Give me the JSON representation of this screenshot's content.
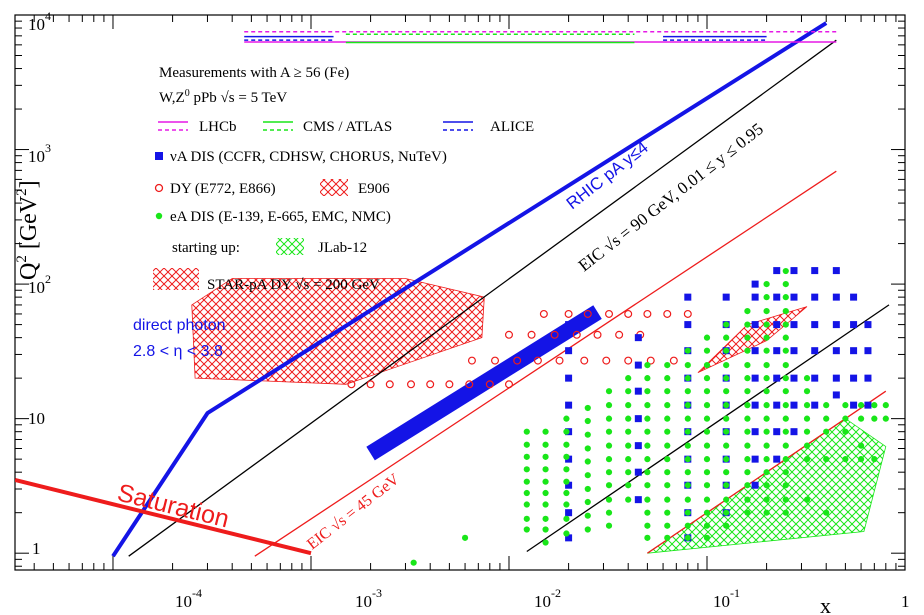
{
  "chart_data": {
    "type": "scatter",
    "title": "",
    "xlabel": "x",
    "ylabel": "Q",
    "ylabel_sup": "2",
    "ylabel_unit": " [GeV",
    "ylabel_unit_sup": "2",
    "ylabel_unit_close": "]",
    "xscale": "log",
    "yscale": "log",
    "xlim": [
      3.2e-05,
      1
    ],
    "ylim": [
      0.75,
      10000
    ],
    "grid": false,
    "x_ticks": [
      {
        "value": 0.0001,
        "base": "10",
        "exp": "-4"
      },
      {
        "value": 0.001,
        "base": "10",
        "exp": "-3"
      },
      {
        "value": 0.01,
        "base": "10",
        "exp": "-2"
      },
      {
        "value": 0.1,
        "base": "10",
        "exp": "-1"
      },
      {
        "value": 1,
        "base": "1",
        "exp": ""
      }
    ],
    "y_ticks": [
      {
        "value": 1,
        "base": "1",
        "exp": ""
      },
      {
        "value": 10,
        "base": "10",
        "exp": ""
      },
      {
        "value": 100,
        "base": "10",
        "exp": "2"
      },
      {
        "value": 1000,
        "base": "10",
        "exp": "3"
      },
      {
        "value": 10000,
        "base": "10",
        "exp": "4"
      }
    ],
    "legend": {
      "header1": "Measurements with A ≥ 56 (Fe)",
      "header2": "W,Z",
      "header2_sup": "0",
      "header2_rest": " pPb √s = 5 TeV",
      "lhcb": "LHCb",
      "cms": "CMS / ATLAS",
      "alice": "ALICE",
      "nuA": "νA DIS (CCFR, CDHSW, CHORUS, NuTeV)",
      "dy": "DY (E772, E866)",
      "e906": "E906",
      "eA": "eA DIS (E-139, E-665, EMC, NMC)",
      "starting": "starting up:",
      "jlab": "JLab-12",
      "star": "STAR-pA DY  √s = 200 GeV"
    },
    "annotations": {
      "rhic": "RHIC pA y≤4",
      "eic90": "EIC √s = 90 GeV, 0.01 ≤ y ≤ 0.95",
      "eic45": "EIC √s = 45 GeV",
      "saturation": "Saturation",
      "photon1": "direct photon",
      "photon2": "2.8 < η < 3.8"
    },
    "series": [
      {
        "name": "RHIC pA y≤4",
        "kind": "line",
        "points": [
          [
            0.0001,
            0.95
          ],
          [
            0.0003,
            11
          ],
          [
            0.4,
            8700
          ]
        ]
      },
      {
        "name": "EIC √s = 90 GeV, 0.01 ≤ y ≤ 0.95",
        "kind": "line",
        "points": [
          [
            0.00012,
            0.95
          ],
          [
            0.45,
            6500
          ]
        ]
      },
      {
        "name": "EIC √s = 90 GeV, 0.01 ≤ y ≤ 0.95",
        "kind": "line",
        "points": [
          [
            0.0123,
            1.03
          ],
          [
            0.83,
            70
          ]
        ]
      },
      {
        "name": "EIC √s = 45 GeV",
        "kind": "line",
        "points": [
          [
            0.00052,
            0.95
          ],
          [
            0.45,
            690
          ]
        ]
      },
      {
        "name": "EIC √s = 45 GeV",
        "kind": "line",
        "points": [
          [
            0.05,
            1.0
          ],
          [
            0.8,
            16
          ]
        ]
      },
      {
        "name": "Saturation",
        "kind": "line",
        "points": [
          [
            3.2e-05,
            3.5
          ],
          [
            0.001,
            1.0
          ]
        ]
      },
      {
        "name": "νA DIS (CCFR, CDHSW, CHORUS, NuTeV)",
        "kind": "thick_band",
        "points": [
          [
            0.002,
            5.5
          ],
          [
            0.028,
            62
          ]
        ]
      },
      {
        "name": "STAR-pA DY  √s = 200 GeV",
        "kind": "hatch_region",
        "points": [
          [
            0.00026,
            20
          ],
          [
            0.00025,
            70
          ],
          [
            0.0004,
            110
          ],
          [
            0.003,
            110
          ],
          [
            0.0075,
            80
          ],
          [
            0.0073,
            40
          ],
          [
            0.0015,
            18
          ],
          [
            0.00026,
            20
          ]
        ]
      },
      {
        "name": "E906",
        "kind": "hatch_region",
        "points": [
          [
            0.09,
            22
          ],
          [
            0.2,
            38
          ],
          [
            0.27,
            55
          ],
          [
            0.32,
            68
          ],
          [
            0.16,
            50
          ],
          [
            0.09,
            22
          ]
        ]
      },
      {
        "name": "JLab-12",
        "kind": "hatch_region",
        "points": [
          [
            0.05,
            1.0
          ],
          [
            0.62,
            1.45
          ],
          [
            0.8,
            6.2
          ],
          [
            0.5,
            10
          ],
          [
            0.05,
            1.0
          ]
        ]
      },
      {
        "name": "DY (E772, E866)",
        "kind": "points",
        "rows": [
          {
            "q2": 60,
            "x": [
              0.015,
              0.02,
              0.025,
              0.032,
              0.04,
              0.05,
              0.063,
              0.08
            ]
          },
          {
            "q2": 42,
            "x": [
              0.01,
              0.013,
              0.017,
              0.022,
              0.028,
              0.036,
              0.046
            ]
          },
          {
            "q2": 27,
            "x": [
              0.0065,
              0.0085,
              0.011,
              0.014,
              0.018,
              0.024,
              0.031,
              0.04,
              0.052,
              0.068
            ]
          },
          {
            "q2": 18,
            "x": [
              0.0016,
              0.002,
              0.0025,
              0.0032,
              0.004,
              0.005,
              0.0063,
              0.008,
              0.01
            ]
          }
        ]
      },
      {
        "name": "W,Z0 pPb √s = 5 TeV (LHCb)",
        "kind": "segments",
        "segments": [
          [
            0.00046,
            0.45,
            7500
          ],
          [
            0.00046,
            0.45,
            6300
          ]
        ]
      },
      {
        "name": "W,Z0 pPb √s = 5 TeV (CMS / ATLAS)",
        "kind": "segments",
        "segments": [
          [
            0.0015,
            0.043,
            7200
          ],
          [
            0.0015,
            0.043,
            6250
          ]
        ]
      },
      {
        "name": "W,Z0 pPb √s = 5 TeV (ALICE)",
        "kind": "segments",
        "segments": [
          [
            0.00046,
            0.0013,
            6900
          ],
          [
            0.00046,
            0.0013,
            6500
          ],
          [
            0.06,
            0.2,
            6900
          ],
          [
            0.06,
            0.2,
            6500
          ]
        ]
      },
      {
        "name": "νA DIS (CCFR, CDHSW, CHORUS, NuTeV)",
        "kind": "points",
        "columns": [
          {
            "x": 0.02,
            "q2": [
              1.3,
              2.0,
              3.2,
              5.0,
              8.0,
              12.6,
              20,
              32,
              50
            ]
          },
          {
            "x": 0.045,
            "q2": [
              2.5,
              4.0,
              6.3,
              10,
              16,
              25,
              40
            ]
          },
          {
            "x": 0.08,
            "q2": [
              1.3,
              2.0,
              3.2,
              5.0,
              8.0,
              12.6,
              20,
              32,
              50,
              80
            ]
          },
          {
            "x": 0.125,
            "q2": [
              2.0,
              3.2,
              5.0,
              8.0,
              12.6,
              20,
              32,
              50,
              80
            ]
          },
          {
            "x": 0.175,
            "q2": [
              3.2,
              5.0,
              8.0,
              12.6,
              20,
              32,
              50,
              80,
              100
            ]
          },
          {
            "x": 0.225,
            "q2": [
              5.0,
              8.0,
              12.6,
              20,
              32,
              50,
              80,
              126
            ]
          },
          {
            "x": 0.275,
            "q2": [
              8.0,
              12.6,
              20,
              32,
              50,
              80,
              126
            ]
          },
          {
            "x": 0.35,
            "q2": [
              12.6,
              20,
              32,
              50,
              80,
              126
            ]
          },
          {
            "x": 0.45,
            "q2": [
              15,
              20,
              32,
              50,
              80,
              126
            ]
          },
          {
            "x": 0.55,
            "q2": [
              12.6,
              20,
              32,
              50,
              80
            ]
          },
          {
            "x": 0.65,
            "q2": [
              12.6,
              20,
              32,
              50
            ]
          }
        ]
      },
      {
        "name": "eA DIS (E-139, E-665, EMC, NMC)",
        "kind": "points",
        "columns": [
          {
            "x": 0.0033,
            "q2": [
              0.85
            ]
          },
          {
            "x": 0.006,
            "q2": [
              1.3
            ]
          },
          {
            "x": 0.0123,
            "q2": [
              1.5,
              1.8,
              2.3,
              2.8,
              3.4,
              4.2,
              5.2,
              6.4,
              8.0
            ]
          },
          {
            "x": 0.0153,
            "q2": [
              1.2,
              1.5,
              1.8,
              2.3,
              2.8,
              3.4,
              4.2,
              5.2,
              6.4,
              8.0
            ]
          },
          {
            "x": 0.0195,
            "q2": [
              1.4,
              1.8,
              2.3,
              2.8,
              3.4,
              4.2,
              5.2,
              6.4,
              8.0,
              10
            ]
          },
          {
            "x": 0.025,
            "q2": [
              1.5,
              1.9,
              2.4,
              3.0,
              3.8,
              4.8,
              6.0,
              7.6,
              9.6,
              12
            ]
          },
          {
            "x": 0.032,
            "q2": [
              1.6,
              2.0,
              2.5,
              3.2,
              4.0,
              5.0,
              6.3,
              8.0,
              10,
              12.6,
              16
            ]
          },
          {
            "x": 0.04,
            "q2": [
              2.5,
              3.2,
              4.0,
              5.0,
              6.3,
              8.0,
              10,
              12.6,
              16,
              20
            ]
          },
          {
            "x": 0.05,
            "q2": [
              1.3,
              1.6,
              2.0,
              2.5,
              3.2,
              4.0,
              5.0,
              6.3,
              8.0,
              10,
              12.6,
              16,
              20,
              25
            ]
          },
          {
            "x": 0.063,
            "q2": [
              1.3,
              1.6,
              2.0,
              2.5,
              3.2,
              4.0,
              5.0,
              6.3,
              8.0,
              10,
              12.6,
              16,
              20,
              25
            ]
          },
          {
            "x": 0.08,
            "q2": [
              1.3,
              1.6,
              2.0,
              2.5,
              3.2,
              4.0,
              5.0,
              6.3,
              8.0,
              10,
              12.6,
              16,
              20,
              25,
              32
            ]
          },
          {
            "x": 0.1,
            "q2": [
              1.3,
              1.6,
              2.0,
              2.5,
              3.2,
              4.0,
              5.0,
              6.3,
              8.0,
              10,
              12.6,
              16,
              20,
              25,
              32,
              40
            ]
          },
          {
            "x": 0.125,
            "q2": [
              1.6,
              2.0,
              2.5,
              3.2,
              4.0,
              5.0,
              6.3,
              8.0,
              10,
              12.6,
              16,
              20,
              25,
              32,
              40,
              50
            ]
          },
          {
            "x": 0.16,
            "q2": [
              2.0,
              2.5,
              3.2,
              4.0,
              5.0,
              6.3,
              8.0,
              10,
              12.6,
              16,
              20,
              25,
              32,
              40,
              50,
              63
            ]
          },
          {
            "x": 0.2,
            "q2": [
              2.0,
              2.5,
              3.2,
              4.0,
              5.0,
              6.3,
              8.0,
              10,
              12.6,
              16,
              20,
              25,
              32,
              40,
              50,
              63,
              80,
              100
            ]
          },
          {
            "x": 0.25,
            "q2": [
              2.0,
              2.5,
              3.2,
              4.0,
              5.0,
              6.3,
              8.0,
              10,
              12.6,
              16,
              20,
              25,
              32,
              40,
              50,
              63,
              80,
              100,
              125
            ]
          },
          {
            "x": 0.32,
            "q2": [
              2.5,
              5.0,
              6.3,
              8.0,
              10,
              12.6,
              16,
              20
            ]
          },
          {
            "x": 0.4,
            "q2": [
              2.0,
              5.0,
              8.0,
              10,
              12.6
            ]
          },
          {
            "x": 0.5,
            "q2": [
              5.0,
              8.0,
              10,
              12.6
            ]
          },
          {
            "x": 0.6,
            "q2": [
              5.0,
              6.3,
              10,
              12.6
            ]
          },
          {
            "x": 0.7,
            "q2": [
              5.0,
              10,
              12.6
            ]
          },
          {
            "x": 0.8,
            "q2": [
              10,
              12.6
            ]
          }
        ]
      }
    ]
  },
  "colors": {
    "blue": "#1414e6",
    "red": "#ee1c1c",
    "green": "#19e619",
    "magenta": "#e619e6",
    "black": "#000000"
  }
}
